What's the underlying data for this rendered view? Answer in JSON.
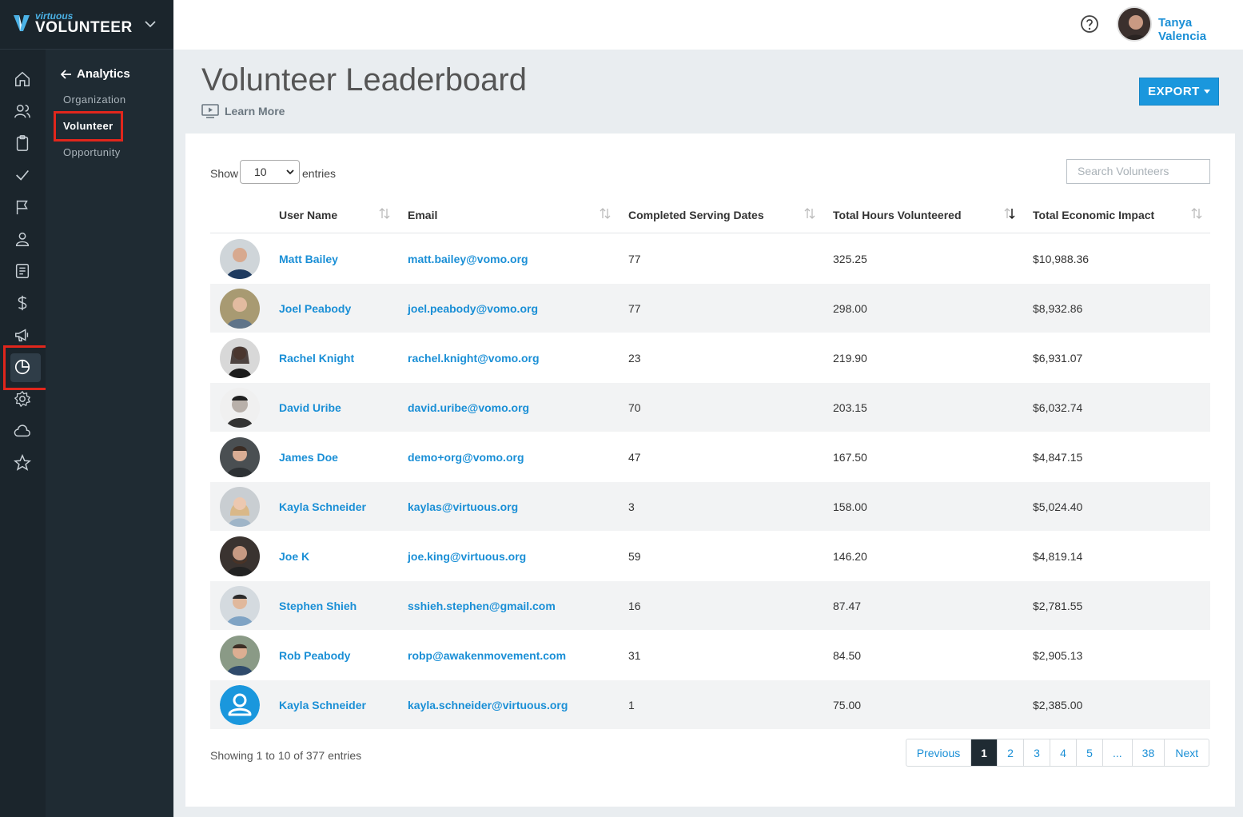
{
  "brand": {
    "small": "virtuous",
    "big": "VOLUNTEER"
  },
  "subnav": {
    "back_label": "Analytics",
    "items": [
      {
        "label": "Organization"
      },
      {
        "label": "Volunteer"
      },
      {
        "label": "Opportunity"
      }
    ]
  },
  "rail_icons": [
    "home-icon",
    "users-icon",
    "clipboard-icon",
    "check-icon",
    "flag-icon",
    "person-icon",
    "document-icon",
    "dollar-icon",
    "megaphone-icon",
    "analytics-pie-icon",
    "settings-gear-icon",
    "cloud-icon",
    "star-icon"
  ],
  "topbar": {
    "user_name": "Tanya Valencia"
  },
  "page": {
    "title": "Volunteer Leaderboard",
    "learn_more": "Learn More",
    "export_label": "EXPORT"
  },
  "table_controls": {
    "show_label": "Show",
    "page_size": "10",
    "entries_label": "entries",
    "search_placeholder": "Search Volunteers"
  },
  "columns": [
    "User Name",
    "Email",
    "Completed Serving Dates",
    "Total Hours Volunteered",
    "Total Economic Impact"
  ],
  "rows": [
    {
      "name": "Matt Bailey",
      "email": "matt.bailey@vomo.org",
      "dates": "77",
      "hours": "325.25",
      "impact": "$10,988.36"
    },
    {
      "name": "Joel Peabody",
      "email": "joel.peabody@vomo.org",
      "dates": "77",
      "hours": "298.00",
      "impact": "$8,932.86"
    },
    {
      "name": "Rachel Knight",
      "email": "rachel.knight@vomo.org",
      "dates": "23",
      "hours": "219.90",
      "impact": "$6,931.07"
    },
    {
      "name": "David Uribe",
      "email": "david.uribe@vomo.org",
      "dates": "70",
      "hours": "203.15",
      "impact": "$6,032.74"
    },
    {
      "name": "James Doe",
      "email": "demo+org@vomo.org",
      "dates": "47",
      "hours": "167.50",
      "impact": "$4,847.15"
    },
    {
      "name": "Kayla Schneider",
      "email": "kaylas@virtuous.org",
      "dates": "3",
      "hours": "158.00",
      "impact": "$5,024.40"
    },
    {
      "name": "Joe K",
      "email": "joe.king@virtuous.org",
      "dates": "59",
      "hours": "146.20",
      "impact": "$4,819.14"
    },
    {
      "name": "Stephen Shieh",
      "email": "sshieh.stephen@gmail.com",
      "dates": "16",
      "hours": "87.47",
      "impact": "$2,781.55"
    },
    {
      "name": "Rob Peabody",
      "email": "robp@awakenmovement.com",
      "dates": "31",
      "hours": "84.50",
      "impact": "$2,905.13"
    },
    {
      "name": "Kayla Schneider",
      "email": "kayla.schneider@virtuous.org",
      "dates": "1",
      "hours": "75.00",
      "impact": "$2,385.00"
    }
  ],
  "footer": {
    "info": "Showing 1 to 10 of 377 entries",
    "pagination": [
      "Previous",
      "1",
      "2",
      "3",
      "4",
      "5",
      "...",
      "38",
      "Next"
    ],
    "active_page": "1"
  },
  "colors": {
    "accent": "#1a97dd",
    "link": "#1a8fd6",
    "rail": "#1b252c",
    "highlight": "#e1261c"
  }
}
